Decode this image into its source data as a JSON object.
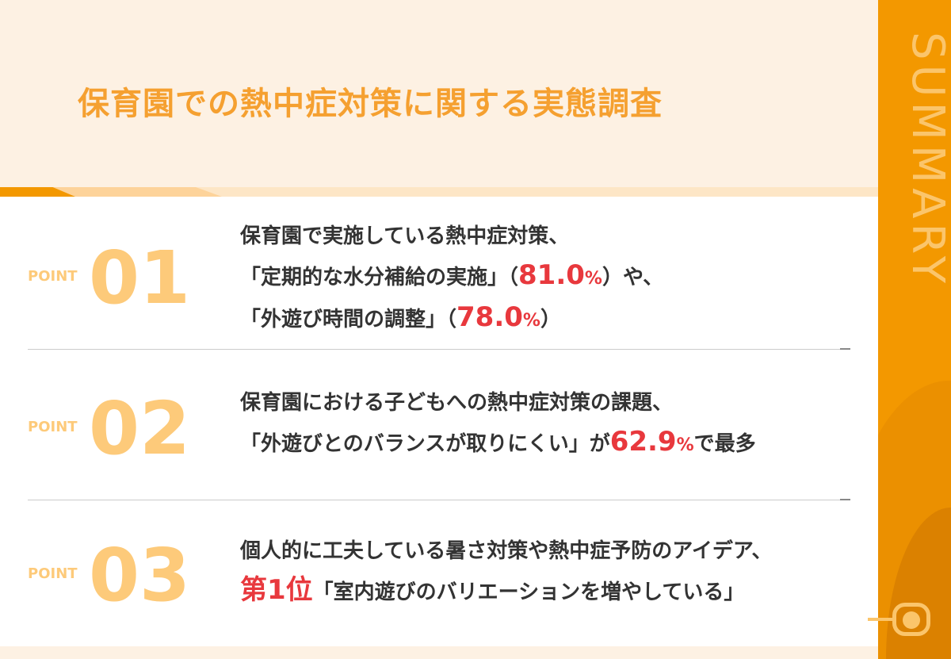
{
  "title": "保育園での熱中症対策に関する実態調査",
  "side_label": "SUMMARY",
  "colors": {
    "accent": "#f39800",
    "title": "#f5a030",
    "highlight": "#e8383d",
    "point": "#fdca7a"
  },
  "points": [
    {
      "label": "POINT",
      "num": "01",
      "l1": "保育園で実施している熱中症対策、",
      "l2a": "「定期的な水分補給の実施」（",
      "v1": "81.0",
      "u": "%",
      "l2b": "）や、",
      "l3a": "「外遊び時間の調整」（",
      "v2": "78.0",
      "l3b": "）"
    },
    {
      "label": "POINT",
      "num": "02",
      "l1": "保育園における子どもへの熱中症対策の課題、",
      "l2a": "「外遊びとのバランスが取りにくい」が",
      "v1": "62.9",
      "u": "%",
      "l2b": "で最多"
    },
    {
      "label": "POINT",
      "num": "03",
      "l1": "個人的に工夫している暑さ対策や熱中症予防のアイデア、",
      "rank": "第1位",
      "l2b": "「室内遊びのバリエーションを増やしている」"
    }
  ]
}
